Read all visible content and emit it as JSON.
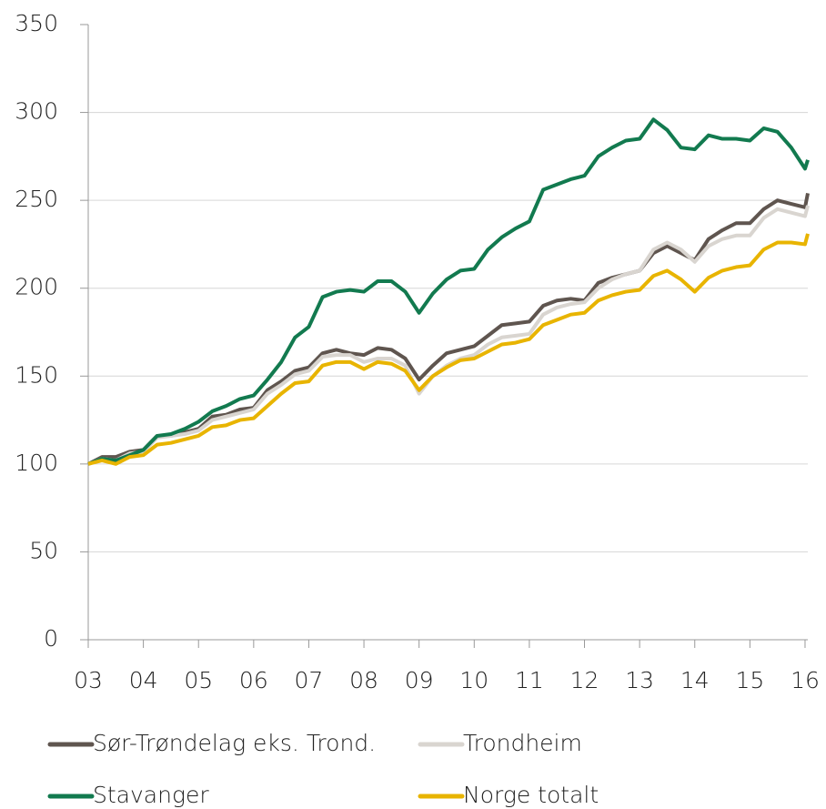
{
  "chart_data": {
    "type": "line",
    "x": [
      2003,
      2003.25,
      2003.5,
      2003.75,
      2004,
      2004.25,
      2004.5,
      2004.75,
      2005,
      2005.25,
      2005.5,
      2005.75,
      2006,
      2006.25,
      2006.5,
      2006.75,
      2007,
      2007.25,
      2007.5,
      2007.75,
      2008,
      2008.25,
      2008.5,
      2008.75,
      2009,
      2009.25,
      2009.5,
      2009.75,
      2010,
      2010.25,
      2010.5,
      2010.75,
      2011,
      2011.25,
      2011.5,
      2011.75,
      2012,
      2012.25,
      2012.5,
      2012.75,
      2013,
      2013.25,
      2013.5,
      2013.75,
      2014,
      2014.25,
      2014.5,
      2014.75,
      2015,
      2015.25,
      2015.5,
      2015.75,
      2016,
      2016.05
    ],
    "series": [
      {
        "name": "Sør-Trøndelag eks. Trond.",
        "color": "#5f554f",
        "values": [
          100,
          104,
          104,
          107,
          108,
          116,
          116,
          118,
          120,
          127,
          128,
          131,
          132,
          142,
          147,
          153,
          155,
          163,
          165,
          163,
          162,
          166,
          165,
          160,
          148,
          156,
          163,
          165,
          167,
          173,
          179,
          180,
          181,
          190,
          193,
          194,
          193,
          203,
          206,
          208,
          210,
          220,
          224,
          220,
          216,
          228,
          233,
          237,
          237,
          245,
          250,
          248,
          246,
          254
        ]
      },
      {
        "name": "Trondheim",
        "color": "#d9d5d0",
        "values": [
          100,
          103,
          102,
          106,
          107,
          115,
          116,
          117,
          119,
          125,
          127,
          129,
          131,
          140,
          145,
          151,
          153,
          161,
          162,
          162,
          158,
          160,
          160,
          156,
          140,
          150,
          156,
          160,
          162,
          168,
          172,
          173,
          174,
          185,
          189,
          191,
          192,
          200,
          205,
          208,
          210,
          222,
          226,
          222,
          215,
          224,
          228,
          230,
          230,
          240,
          245,
          243,
          241,
          247
        ]
      },
      {
        "name": "Stavanger",
        "color": "#127a4f",
        "values": [
          100,
          103,
          102,
          105,
          108,
          116,
          117,
          120,
          124,
          130,
          133,
          137,
          139,
          148,
          158,
          172,
          178,
          195,
          198,
          199,
          198,
          204,
          204,
          198,
          186,
          197,
          205,
          210,
          211,
          222,
          229,
          234,
          238,
          256,
          259,
          262,
          264,
          275,
          280,
          284,
          285,
          296,
          290,
          280,
          279,
          287,
          285,
          285,
          284,
          291,
          289,
          280,
          268,
          273
        ]
      },
      {
        "name": "Norge totalt",
        "color": "#e8b400",
        "values": [
          100,
          102,
          100,
          104,
          105,
          111,
          112,
          114,
          116,
          121,
          122,
          125,
          126,
          133,
          140,
          146,
          147,
          156,
          158,
          158,
          154,
          158,
          157,
          153,
          142,
          150,
          155,
          159,
          160,
          164,
          168,
          169,
          171,
          179,
          182,
          185,
          186,
          193,
          196,
          198,
          199,
          207,
          210,
          205,
          198,
          206,
          210,
          212,
          213,
          222,
          226,
          226,
          225,
          231
        ]
      }
    ],
    "xlim": [
      2003,
      2016.05
    ],
    "xticks": [
      {
        "value": 2003,
        "label": "03"
      },
      {
        "value": 2004,
        "label": "04"
      },
      {
        "value": 2005,
        "label": "05"
      },
      {
        "value": 2006,
        "label": "06"
      },
      {
        "value": 2007,
        "label": "07"
      },
      {
        "value": 2008,
        "label": "08"
      },
      {
        "value": 2009,
        "label": "09"
      },
      {
        "value": 2010,
        "label": "10"
      },
      {
        "value": 2011,
        "label": "11"
      },
      {
        "value": 2012,
        "label": "12"
      },
      {
        "value": 2013,
        "label": "13"
      },
      {
        "value": 2014,
        "label": "14"
      },
      {
        "value": 2015,
        "label": "15"
      },
      {
        "value": 2016,
        "label": "16"
      }
    ],
    "ylim": [
      0,
      350
    ],
    "yticks": [
      0,
      50,
      100,
      150,
      200,
      250,
      300,
      350
    ],
    "grid": true,
    "legend": "bottom"
  }
}
